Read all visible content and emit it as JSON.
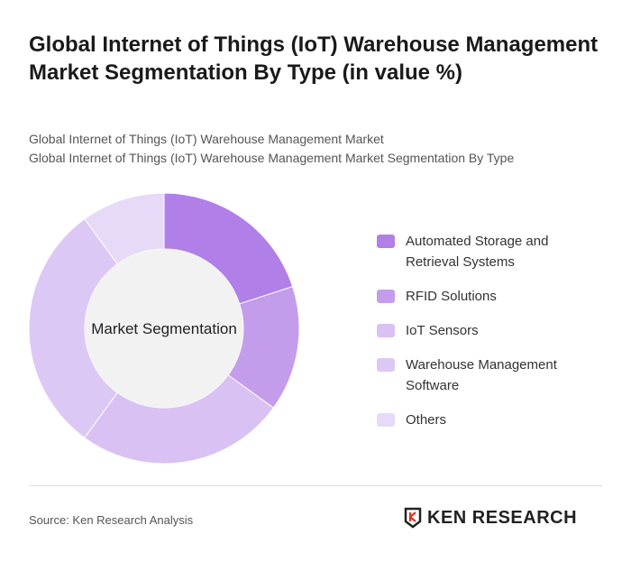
{
  "title": "Global Internet of Things (IoT) Warehouse Management Market Segmentation By Type (in value %)",
  "subtitle1": "Global Internet of Things (IoT) Warehouse Management Market",
  "subtitle2": "Global Internet of Things (IoT) Warehouse Management Market Segmentation By Type",
  "source": "Source: Ken Research Analysis",
  "logo_text": "KEN RESEARCH",
  "chart_data": {
    "type": "pie",
    "donut": true,
    "center_label": "Market Segmentation",
    "categories": [
      "Automated Storage and Retrieval Systems",
      "RFID Solutions",
      "IoT Sensors",
      "Warehouse Management Software",
      "Others"
    ],
    "values": [
      20,
      15,
      25,
      30,
      10
    ],
    "colors": [
      "#b07fe8",
      "#c49cec",
      "#d9c1f3",
      "#dcc8f5",
      "#e7daf8"
    ],
    "legend_position": "right"
  }
}
